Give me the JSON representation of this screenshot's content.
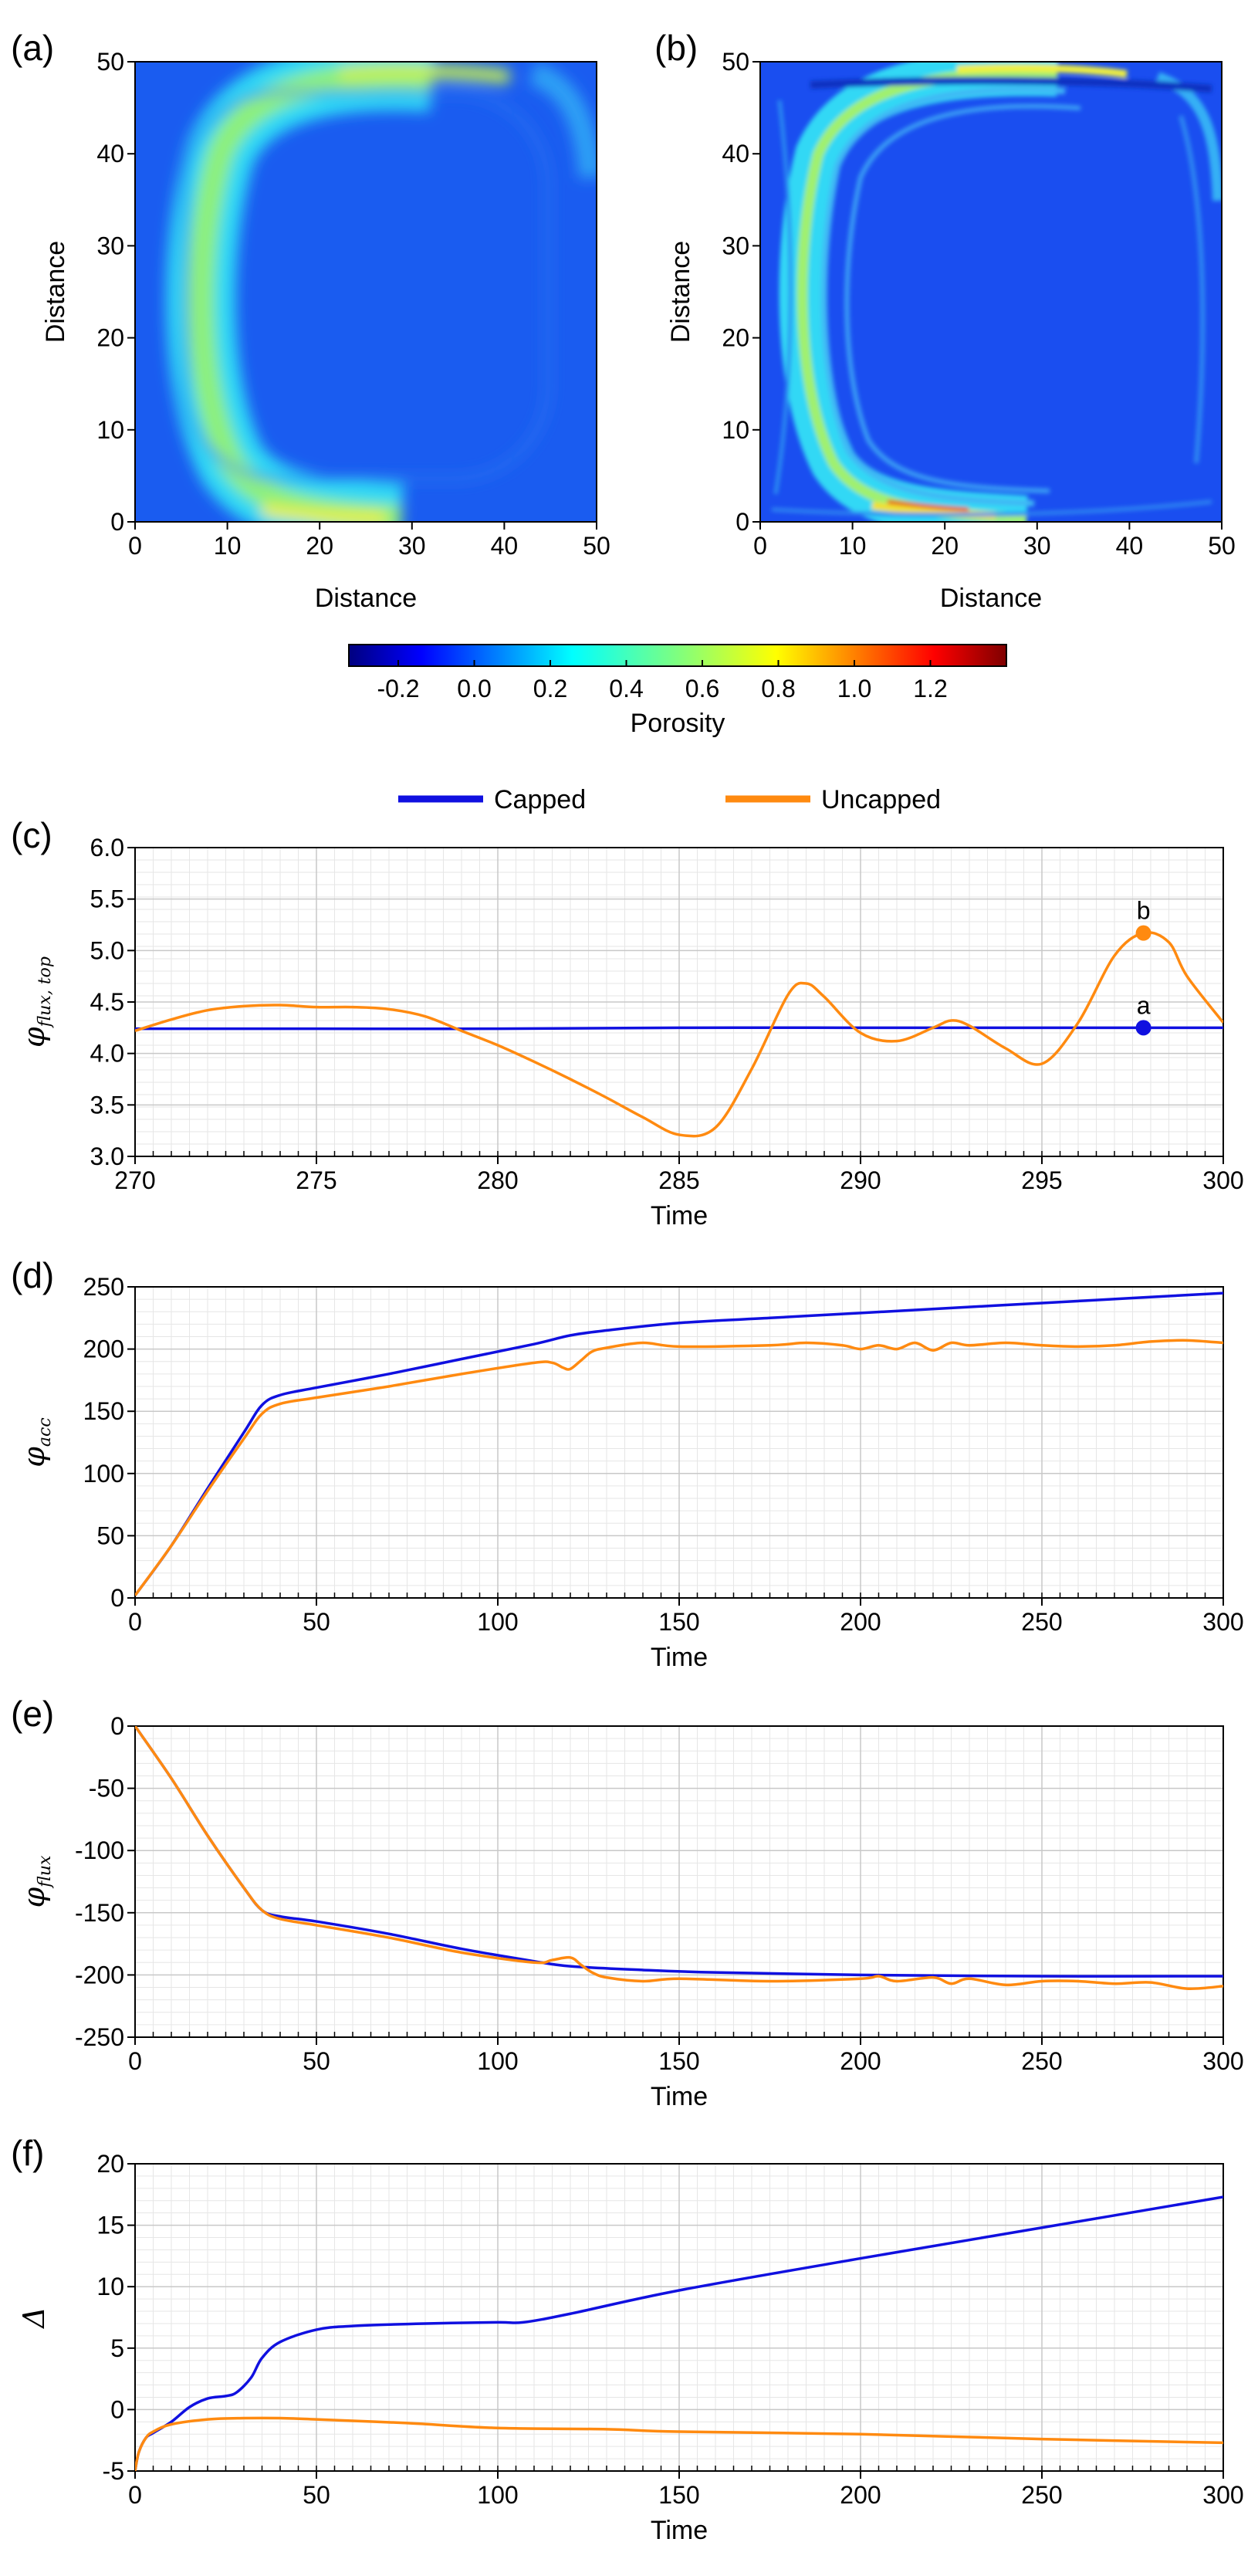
{
  "figure": {
    "colorbar": {
      "label": "Porosity",
      "ticks": [
        "-0.2",
        "0.0",
        "0.2",
        "0.4",
        "0.6",
        "0.8",
        "1.0",
        "1.2"
      ],
      "tick_values": [
        -0.2,
        0.0,
        0.2,
        0.4,
        0.6,
        0.8,
        1.0,
        1.2
      ],
      "range": [
        -0.33,
        1.4
      ],
      "colormap": "jet"
    },
    "legend": [
      {
        "name": "Capped",
        "color": "#1010e0"
      },
      {
        "name": "Uncapped",
        "color": "#ff8a10"
      }
    ]
  },
  "chart_data": [
    {
      "panel": "(a)",
      "type": "heatmap",
      "xlabel": "Distance",
      "ylabel": "Distance",
      "xlim": [
        0,
        50
      ],
      "ylim": [
        0,
        50
      ],
      "xticks": [
        0,
        10,
        20,
        30,
        40,
        50
      ],
      "yticks": [
        0,
        10,
        20,
        30,
        40,
        50
      ],
      "value_label": "Porosity",
      "description_values": {
        "background": 0.05,
        "band_peak": 0.75
      }
    },
    {
      "panel": "(b)",
      "type": "heatmap",
      "xlabel": "Distance",
      "ylabel": "Distance",
      "xlim": [
        0,
        50
      ],
      "ylim": [
        0,
        50
      ],
      "xticks": [
        0,
        10,
        20,
        30,
        40,
        50
      ],
      "yticks": [
        0,
        10,
        20,
        30,
        40,
        50
      ],
      "value_label": "Porosity",
      "description_values": {
        "background": 0.02,
        "band_peak": 1.1
      }
    },
    {
      "panel": "(c)",
      "type": "line",
      "xlabel": "Time",
      "ylabel": "φ",
      "ylabel_sub": "flux, top",
      "xlim": [
        270,
        300
      ],
      "ylim": [
        3.0,
        6.0
      ],
      "xticks": [
        270,
        275,
        280,
        285,
        290,
        295,
        300
      ],
      "yticks": [
        "3.0",
        "3.5",
        "4.0",
        "4.5",
        "5.0",
        "5.5",
        "6.0"
      ],
      "ytick_values": [
        3.0,
        3.5,
        4.0,
        4.5,
        5.0,
        5.5,
        6.0
      ],
      "grid": true,
      "series": [
        {
          "name": "Capped",
          "color": "#1010e0",
          "x": [
            270,
            275,
            280,
            285,
            290,
            295,
            300
          ],
          "y": [
            4.24,
            4.24,
            4.24,
            4.25,
            4.25,
            4.25,
            4.25
          ]
        },
        {
          "name": "Uncapped",
          "color": "#ff8a10",
          "x": [
            270,
            271,
            272,
            273,
            274,
            275,
            276,
            277,
            278,
            279,
            280,
            281,
            282,
            283,
            284,
            285,
            286,
            287,
            288,
            288.5,
            289,
            290,
            291,
            292,
            292.5,
            293,
            294,
            295,
            296,
            297,
            297.8,
            298.5,
            299,
            300
          ],
          "y": [
            4.22,
            4.33,
            4.42,
            4.46,
            4.47,
            4.45,
            4.45,
            4.43,
            4.36,
            4.22,
            4.08,
            3.92,
            3.75,
            3.57,
            3.38,
            3.21,
            3.28,
            3.85,
            4.57,
            4.68,
            4.55,
            4.2,
            4.12,
            4.25,
            4.32,
            4.27,
            4.05,
            3.9,
            4.3,
            4.95,
            5.17,
            5.08,
            4.75,
            4.3
          ]
        }
      ],
      "markers": [
        {
          "label": "a",
          "x": 297.8,
          "y": 4.25,
          "color": "#1010e0"
        },
        {
          "label": "b",
          "x": 297.8,
          "y": 5.17,
          "color": "#ff8a10"
        }
      ]
    },
    {
      "panel": "(d)",
      "type": "line",
      "xlabel": "Time",
      "ylabel": "φ",
      "ylabel_sub": "acc",
      "xlim": [
        0,
        300
      ],
      "ylim": [
        0,
        250
      ],
      "xticks": [
        0,
        50,
        100,
        150,
        200,
        250,
        300
      ],
      "yticks": [
        0,
        50,
        100,
        150,
        200,
        250
      ],
      "grid": true,
      "series": [
        {
          "name": "Capped",
          "color": "#1010e0",
          "x": [
            0,
            10,
            20,
            30,
            35,
            40,
            50,
            70,
            90,
            110,
            120,
            130,
            150,
            175,
            200,
            225,
            250,
            275,
            300
          ],
          "y": [
            2,
            42,
            88,
            133,
            155,
            163,
            169,
            180,
            192,
            204,
            211,
            215,
            221,
            225,
            229,
            233,
            237,
            241,
            245
          ]
        },
        {
          "name": "Uncapped",
          "color": "#ff8a10",
          "x": [
            0,
            10,
            20,
            30,
            35,
            40,
            50,
            70,
            90,
            110,
            115,
            118,
            120,
            123,
            126,
            130,
            140,
            150,
            175,
            185,
            195,
            200,
            205,
            210,
            215,
            220,
            225,
            230,
            240,
            250,
            260,
            270,
            280,
            290,
            300
          ],
          "y": [
            2,
            42,
            86,
            128,
            148,
            156,
            161,
            170,
            180,
            189,
            189,
            185,
            184,
            191,
            198,
            201,
            205,
            202,
            203,
            205,
            203,
            200,
            203,
            200,
            205,
            199,
            205,
            203,
            205,
            203,
            202,
            203,
            206,
            207,
            205
          ]
        }
      ]
    },
    {
      "panel": "(e)",
      "type": "line",
      "xlabel": "Time",
      "ylabel": "φ",
      "ylabel_sub": "flux",
      "xlim": [
        0,
        300
      ],
      "ylim": [
        -250,
        0
      ],
      "xticks": [
        0,
        50,
        100,
        150,
        200,
        250,
        300
      ],
      "yticks": [
        0,
        -50,
        -100,
        -150,
        -200,
        -250
      ],
      "grid": true,
      "series": [
        {
          "name": "Capped",
          "color": "#1010e0",
          "x": [
            0,
            10,
            20,
            30,
            35,
            40,
            50,
            70,
            90,
            110,
            120,
            140,
            160,
            200,
            250,
            300
          ],
          "y": [
            0,
            -42,
            -88,
            -130,
            -148,
            -153,
            -157,
            -167,
            -179,
            -189,
            -193,
            -196,
            -198,
            -200,
            -201,
            -201
          ]
        },
        {
          "name": "Uncapped",
          "color": "#ff8a10",
          "x": [
            0,
            10,
            20,
            30,
            35,
            40,
            50,
            70,
            90,
            110,
            115,
            120,
            123,
            126,
            130,
            140,
            150,
            175,
            200,
            205,
            210,
            220,
            225,
            230,
            240,
            250,
            260,
            270,
            280,
            290,
            300
          ],
          "y": [
            0,
            -42,
            -88,
            -130,
            -148,
            -155,
            -160,
            -170,
            -182,
            -190,
            -188,
            -186,
            -192,
            -198,
            -202,
            -205,
            -203,
            -205,
            -203,
            -201,
            -205,
            -202,
            -207,
            -203,
            -208,
            -205,
            -205,
            -207,
            -206,
            -211,
            -209
          ]
        }
      ]
    },
    {
      "panel": "(f)",
      "type": "line",
      "xlabel": "Time",
      "ylabel": "Δ",
      "xlim": [
        0,
        300
      ],
      "ylim": [
        -5,
        20
      ],
      "xticks": [
        0,
        50,
        100,
        150,
        200,
        250,
        300
      ],
      "yticks": [
        20,
        15,
        10,
        5,
        0,
        -5
      ],
      "grid": true,
      "series": [
        {
          "name": "Capped",
          "color": "#1010e0",
          "x": [
            0,
            1,
            3,
            5,
            10,
            15,
            20,
            25,
            28,
            32,
            35,
            40,
            50,
            60,
            80,
            100,
            107,
            120,
            150,
            200,
            250,
            300
          ],
          "y": [
            -5,
            -3.5,
            -2.3,
            -1.9,
            -1.0,
            0.2,
            0.9,
            1.1,
            1.4,
            2.6,
            4.2,
            5.5,
            6.5,
            6.8,
            7.0,
            7.1,
            7.1,
            7.8,
            9.7,
            12.3,
            14.8,
            17.3
          ]
        },
        {
          "name": "Uncapped",
          "color": "#ff8a10",
          "x": [
            0,
            1,
            3,
            5,
            10,
            20,
            30,
            40,
            50,
            75,
            100,
            130,
            150,
            200,
            250,
            300
          ],
          "y": [
            -5,
            -3.5,
            -2.3,
            -1.8,
            -1.2,
            -0.8,
            -0.7,
            -0.7,
            -0.8,
            -1.1,
            -1.5,
            -1.6,
            -1.8,
            -2.0,
            -2.4,
            -2.7
          ]
        }
      ]
    }
  ]
}
